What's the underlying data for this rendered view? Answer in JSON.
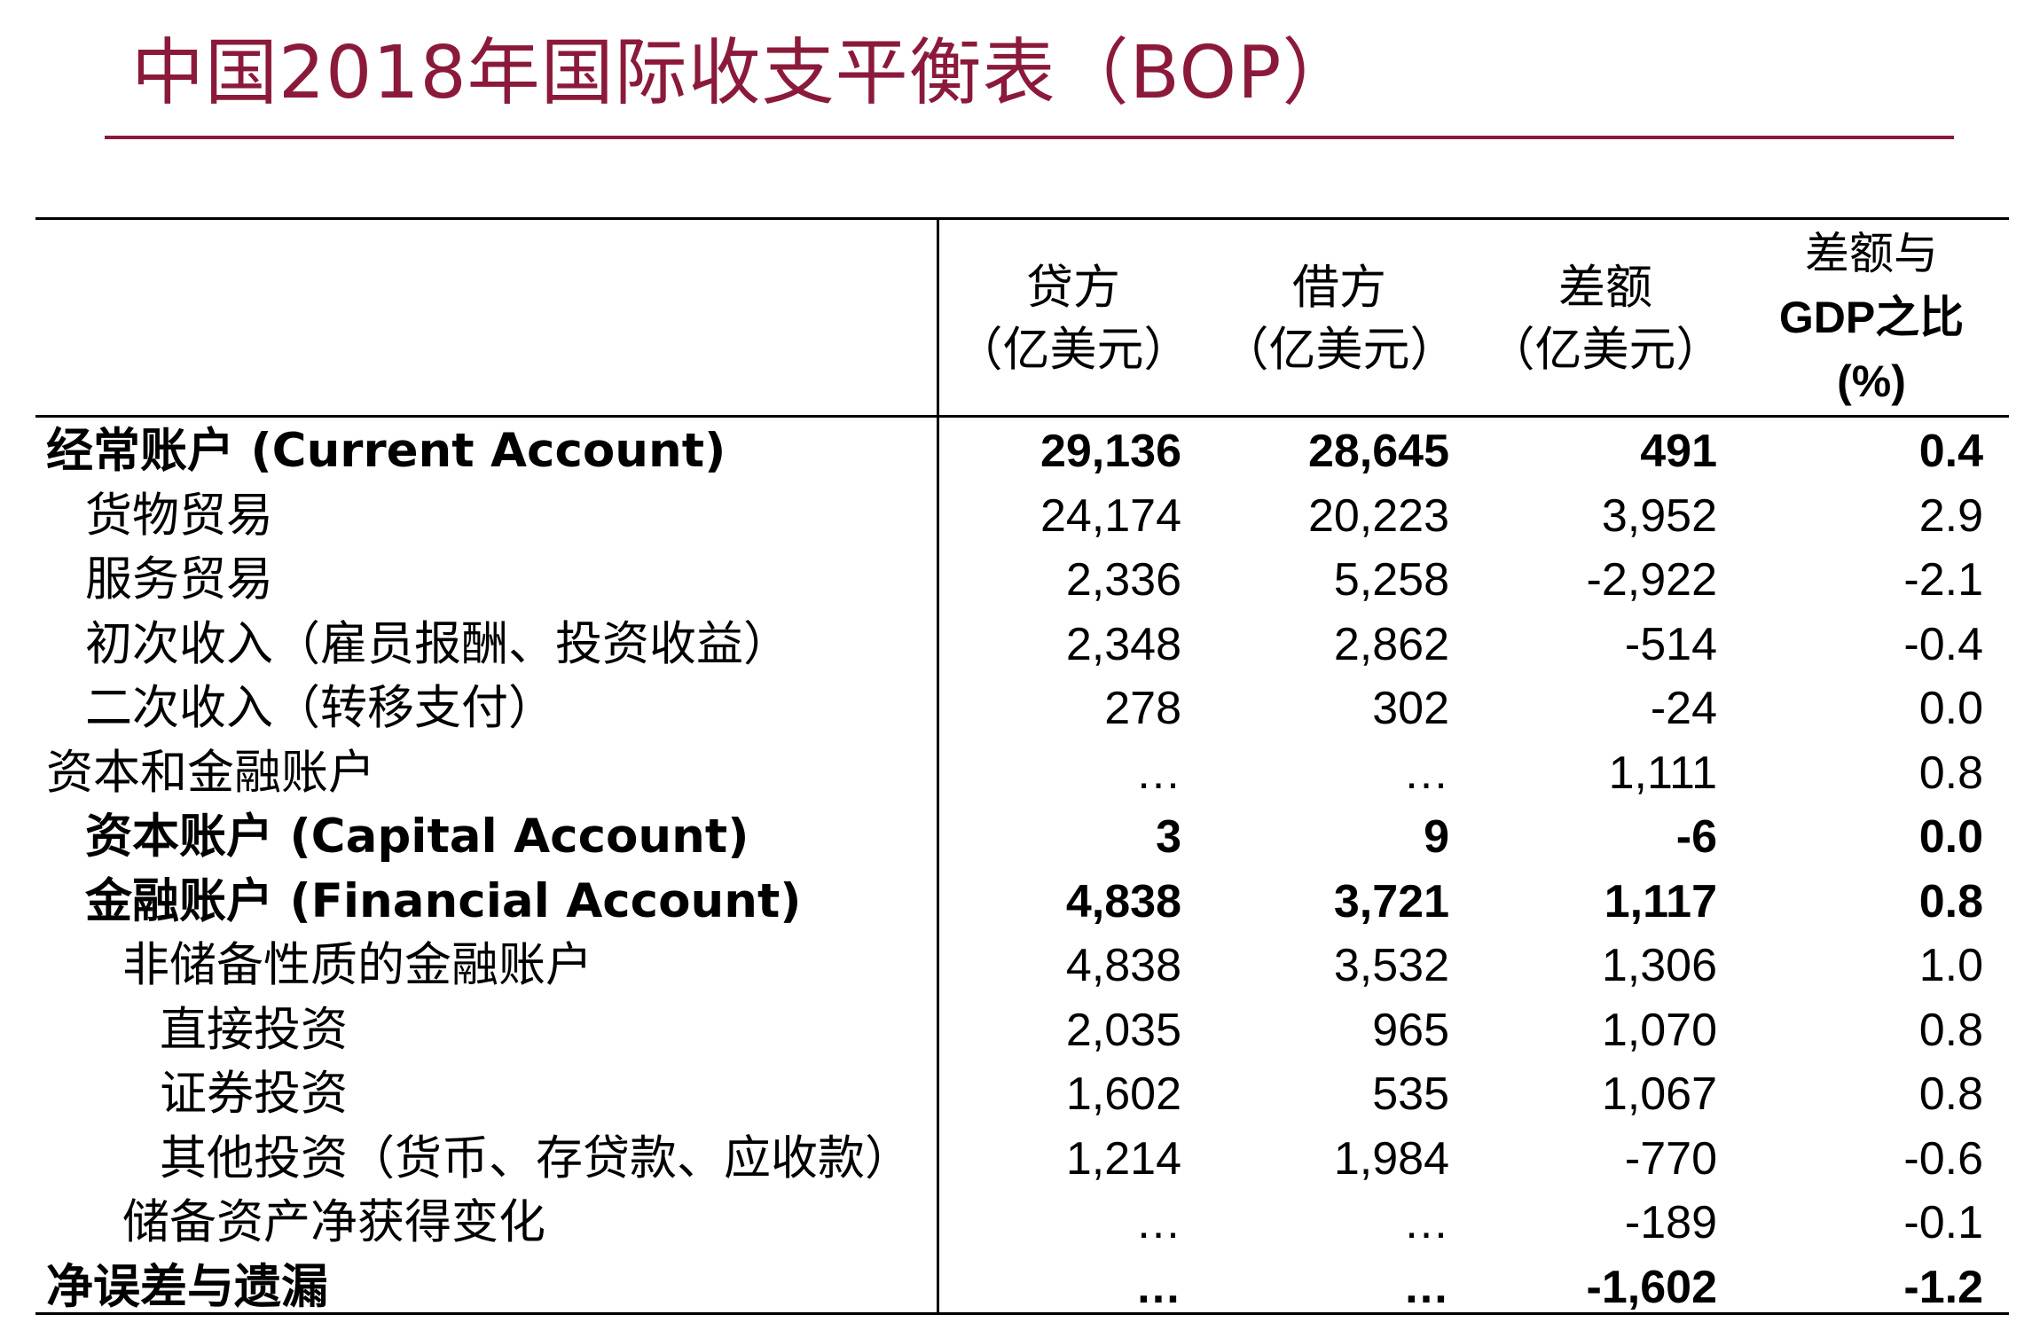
{
  "title": "中国2018年国际收支平衡表（BOP）",
  "colors": {
    "title": "#8b1a3a",
    "text": "#000000"
  },
  "columns": [
    {
      "line1": "贷方",
      "line2": "（亿美元）"
    },
    {
      "line1": "借方",
      "line2": "（亿美元）"
    },
    {
      "line1": "差额",
      "line2": "（亿美元）"
    },
    {
      "line1": "差额与",
      "line2": "GDP之比",
      "line3": "(%)"
    }
  ],
  "rows": [
    {
      "label": "经常账户 (Current Account)",
      "level": 0,
      "bold": true,
      "credit": "29,136",
      "debit": "28,645",
      "balance": "491",
      "gdp_ratio": "0.4"
    },
    {
      "label": "货物贸易",
      "level": 1,
      "bold": false,
      "credit": "24,174",
      "debit": "20,223",
      "balance": "3,952",
      "gdp_ratio": "2.9"
    },
    {
      "label": "服务贸易",
      "level": 1,
      "bold": false,
      "credit": "2,336",
      "debit": "5,258",
      "balance": "-2,922",
      "gdp_ratio": "-2.1"
    },
    {
      "label": "初次收入（雇员报酬、投资收益）",
      "level": 1,
      "bold": false,
      "credit": "2,348",
      "debit": "2,862",
      "balance": "-514",
      "gdp_ratio": "-0.4"
    },
    {
      "label": "二次收入（转移支付）",
      "level": 1,
      "bold": false,
      "credit": "278",
      "debit": "302",
      "balance": "-24",
      "gdp_ratio": "0.0"
    },
    {
      "label": "资本和金融账户",
      "level": 0,
      "bold": false,
      "credit": "…",
      "debit": "…",
      "balance": "1,111",
      "gdp_ratio": "0.8"
    },
    {
      "label": "资本账户 (Capital Account)",
      "level": 1,
      "bold": true,
      "credit": "3",
      "debit": "9",
      "balance": "-6",
      "gdp_ratio": "0.0"
    },
    {
      "label": "金融账户 (Financial Account)",
      "level": 1,
      "bold": true,
      "credit": "4,838",
      "debit": "3,721",
      "balance": "1,117",
      "gdp_ratio": "0.8"
    },
    {
      "label": "非储备性质的金融账户",
      "level": 2,
      "bold": false,
      "credit": "4,838",
      "debit": "3,532",
      "balance": "1,306",
      "gdp_ratio": "1.0"
    },
    {
      "label": "直接投资",
      "level": 3,
      "bold": false,
      "credit": "2,035",
      "debit": "965",
      "balance": "1,070",
      "gdp_ratio": "0.8"
    },
    {
      "label": "证券投资",
      "level": 3,
      "bold": false,
      "credit": "1,602",
      "debit": "535",
      "balance": "1,067",
      "gdp_ratio": "0.8"
    },
    {
      "label": "其他投资（货币、存贷款、应收款）",
      "level": 3,
      "bold": false,
      "credit": "1,214",
      "debit": "1,984",
      "balance": "-770",
      "gdp_ratio": "-0.6"
    },
    {
      "label": "储备资产净获得变化",
      "level": 2,
      "bold": false,
      "credit": "…",
      "debit": "…",
      "balance": "-189",
      "gdp_ratio": "-0.1"
    },
    {
      "label": "净误差与遗漏",
      "level": 0,
      "bold": true,
      "credit": "…",
      "debit": "…",
      "balance": "-1,602",
      "gdp_ratio": "-1.2"
    }
  ]
}
